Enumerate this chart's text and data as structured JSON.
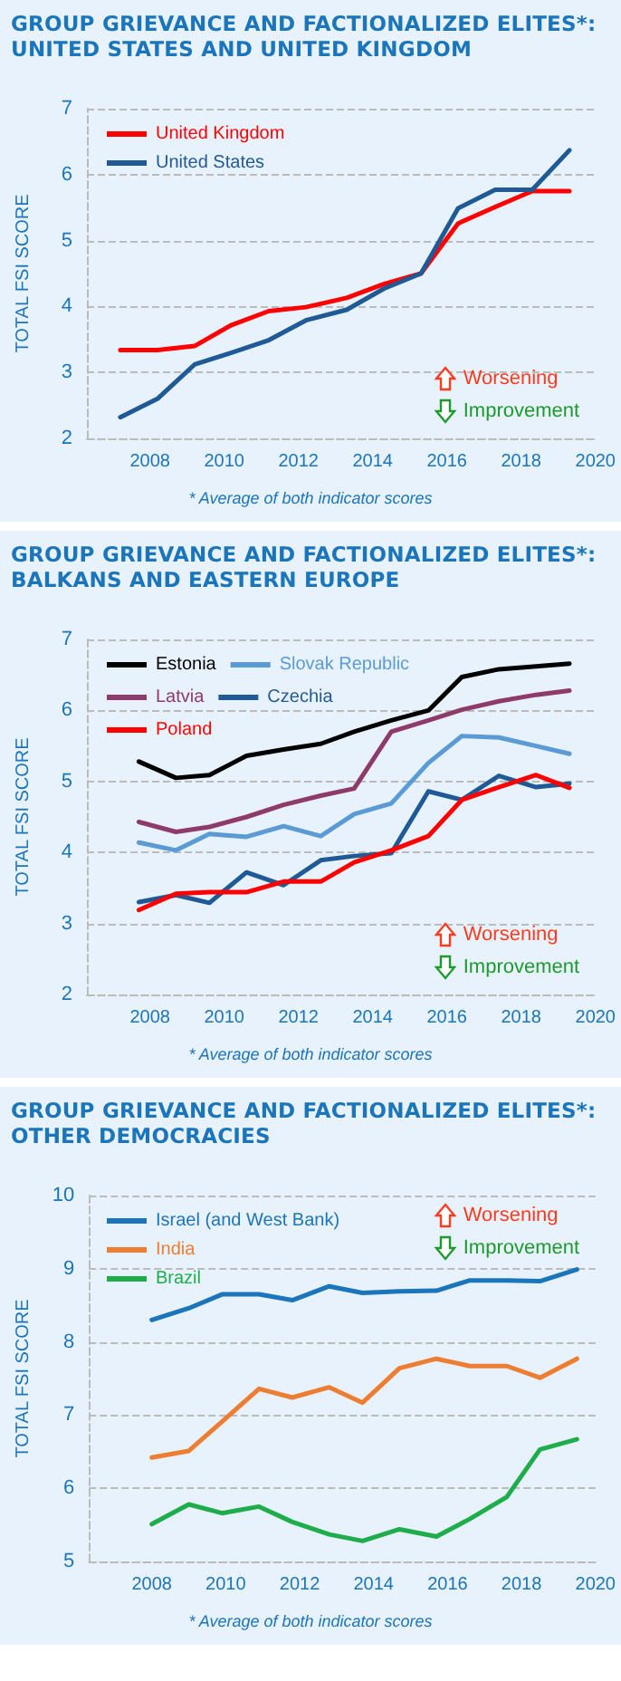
{
  "chart_data": [
    {
      "type": "line",
      "title": "GROUP GRIEVANCE AND FACTIONALIZED ELITES*: UNITED STATES AND UNITED KINGDOM",
      "ylabel": "TOTAL FSI SCORE",
      "xlim": [
        2006.3,
        2020
      ],
      "xticks": [
        2008,
        2010,
        2012,
        2014,
        2016,
        2018,
        2020
      ],
      "ylim": [
        2,
        7
      ],
      "yticks": [
        2,
        3,
        4,
        5,
        6,
        7
      ],
      "grid": "y",
      "legend": "top left",
      "marker": "none",
      "line_style": "solid",
      "x": [
        2007.2,
        2008.2,
        2009.2,
        2010.2,
        2011.2,
        2012.2,
        2013.3,
        2014.3,
        2015.3,
        2016.3,
        2017.3,
        2018.3,
        2019.3
      ],
      "series": [
        {
          "name": "United Kingdom",
          "color": "#ff0000",
          "values": [
            3.34,
            3.34,
            3.4,
            3.72,
            3.93,
            3.99,
            4.13,
            4.34,
            4.5,
            5.26,
            5.51,
            5.75,
            5.75
          ]
        },
        {
          "name": "United States",
          "color": "#1f5a96",
          "values": [
            2.32,
            2.6,
            3.12,
            3.3,
            3.49,
            3.79,
            3.95,
            4.27,
            4.5,
            5.49,
            5.77,
            5.77,
            6.37
          ]
        }
      ],
      "annotations": [
        "Worsening",
        "Improvement",
        "* Average of both indicator scores"
      ]
    },
    {
      "type": "line",
      "title": "GROUP GRIEVANCE AND FACTIONALIZED ELITES*: BALKANS AND EASTERN EUROPE",
      "ylabel": "TOTAL FSI SCORE",
      "xlim": [
        2006.3,
        2020
      ],
      "xticks": [
        2008,
        2010,
        2012,
        2014,
        2016,
        2018,
        2020
      ],
      "ylim": [
        2,
        7
      ],
      "yticks": [
        2,
        3,
        4,
        5,
        6,
        7
      ],
      "grid": "y",
      "legend": "top left",
      "marker": "none",
      "line_style": "solid",
      "x": [
        2007.7,
        2008.7,
        2009.6,
        2010.6,
        2011.6,
        2012.6,
        2013.5,
        2014.5,
        2015.5,
        2016.4,
        2017.4,
        2018.4,
        2019.3
      ],
      "series": [
        {
          "name": "Estonia",
          "color": "#000000",
          "values": [
            5.28,
            5.05,
            5.09,
            5.36,
            5.45,
            5.53,
            5.7,
            5.86,
            6.0,
            6.47,
            6.58,
            6.62,
            6.66
          ]
        },
        {
          "name": "Slovak Republic",
          "color": "#5b9bd5",
          "values": [
            4.14,
            4.03,
            4.26,
            4.22,
            4.37,
            4.23,
            4.54,
            4.69,
            5.26,
            5.64,
            5.62,
            5.5,
            5.39
          ]
        },
        {
          "name": "Latvia",
          "color": "#8e3b6b",
          "values": [
            4.43,
            4.29,
            4.36,
            4.5,
            4.67,
            4.8,
            4.9,
            5.7,
            5.86,
            6.01,
            6.13,
            6.22,
            6.28
          ]
        },
        {
          "name": "Czechia",
          "color": "#1f5a96",
          "values": [
            3.3,
            3.4,
            3.29,
            3.72,
            3.54,
            3.89,
            3.95,
            3.99,
            4.86,
            4.74,
            5.08,
            4.92,
            4.97
          ]
        },
        {
          "name": "Poland",
          "color": "#ff0000",
          "values": [
            3.19,
            3.42,
            3.44,
            3.44,
            3.59,
            3.59,
            3.86,
            4.03,
            4.23,
            4.74,
            4.92,
            5.09,
            4.91
          ]
        }
      ],
      "annotations": [
        "Worsening",
        "Improvement",
        "* Average of both indicator scores"
      ]
    },
    {
      "type": "line",
      "title": "GROUP GRIEVANCE AND FACTIONALIZED ELITES*: OTHER DEMOCRACIES",
      "ylabel": "TOTAL FSI SCORE",
      "xlim": [
        2006.3,
        2020
      ],
      "xticks": [
        2008,
        2010,
        2012,
        2014,
        2016,
        2018,
        2020
      ],
      "ylim": [
        5,
        10
      ],
      "yticks": [
        5,
        6,
        7,
        8,
        9,
        10
      ],
      "grid": "y",
      "legend": "top left",
      "marker": "none",
      "line_style": "solid",
      "x": [
        2008.0,
        2009.0,
        2009.9,
        2010.9,
        2011.8,
        2012.8,
        2013.7,
        2014.7,
        2015.7,
        2016.6,
        2017.6,
        2018.5,
        2019.5
      ],
      "series": [
        {
          "name": "Israel (and West Bank)",
          "color": "#1a75bb",
          "values": [
            8.3,
            8.46,
            8.65,
            8.65,
            8.57,
            8.76,
            8.67,
            8.69,
            8.7,
            8.84,
            8.84,
            8.83,
            8.99
          ]
        },
        {
          "name": "India",
          "color": "#ed7d31",
          "values": [
            6.42,
            6.51,
            6.91,
            7.36,
            7.24,
            7.38,
            7.17,
            7.64,
            7.77,
            7.67,
            7.67,
            7.51,
            7.77
          ]
        },
        {
          "name": "Brazil",
          "color": "#1fad4b",
          "values": [
            5.51,
            5.78,
            5.66,
            5.75,
            5.54,
            5.37,
            5.28,
            5.44,
            5.34,
            5.58,
            5.88,
            6.53,
            6.67
          ]
        }
      ],
      "annotations": [
        "Worsening",
        "Improvement",
        "* Average of both indicator scores"
      ]
    }
  ]
}
